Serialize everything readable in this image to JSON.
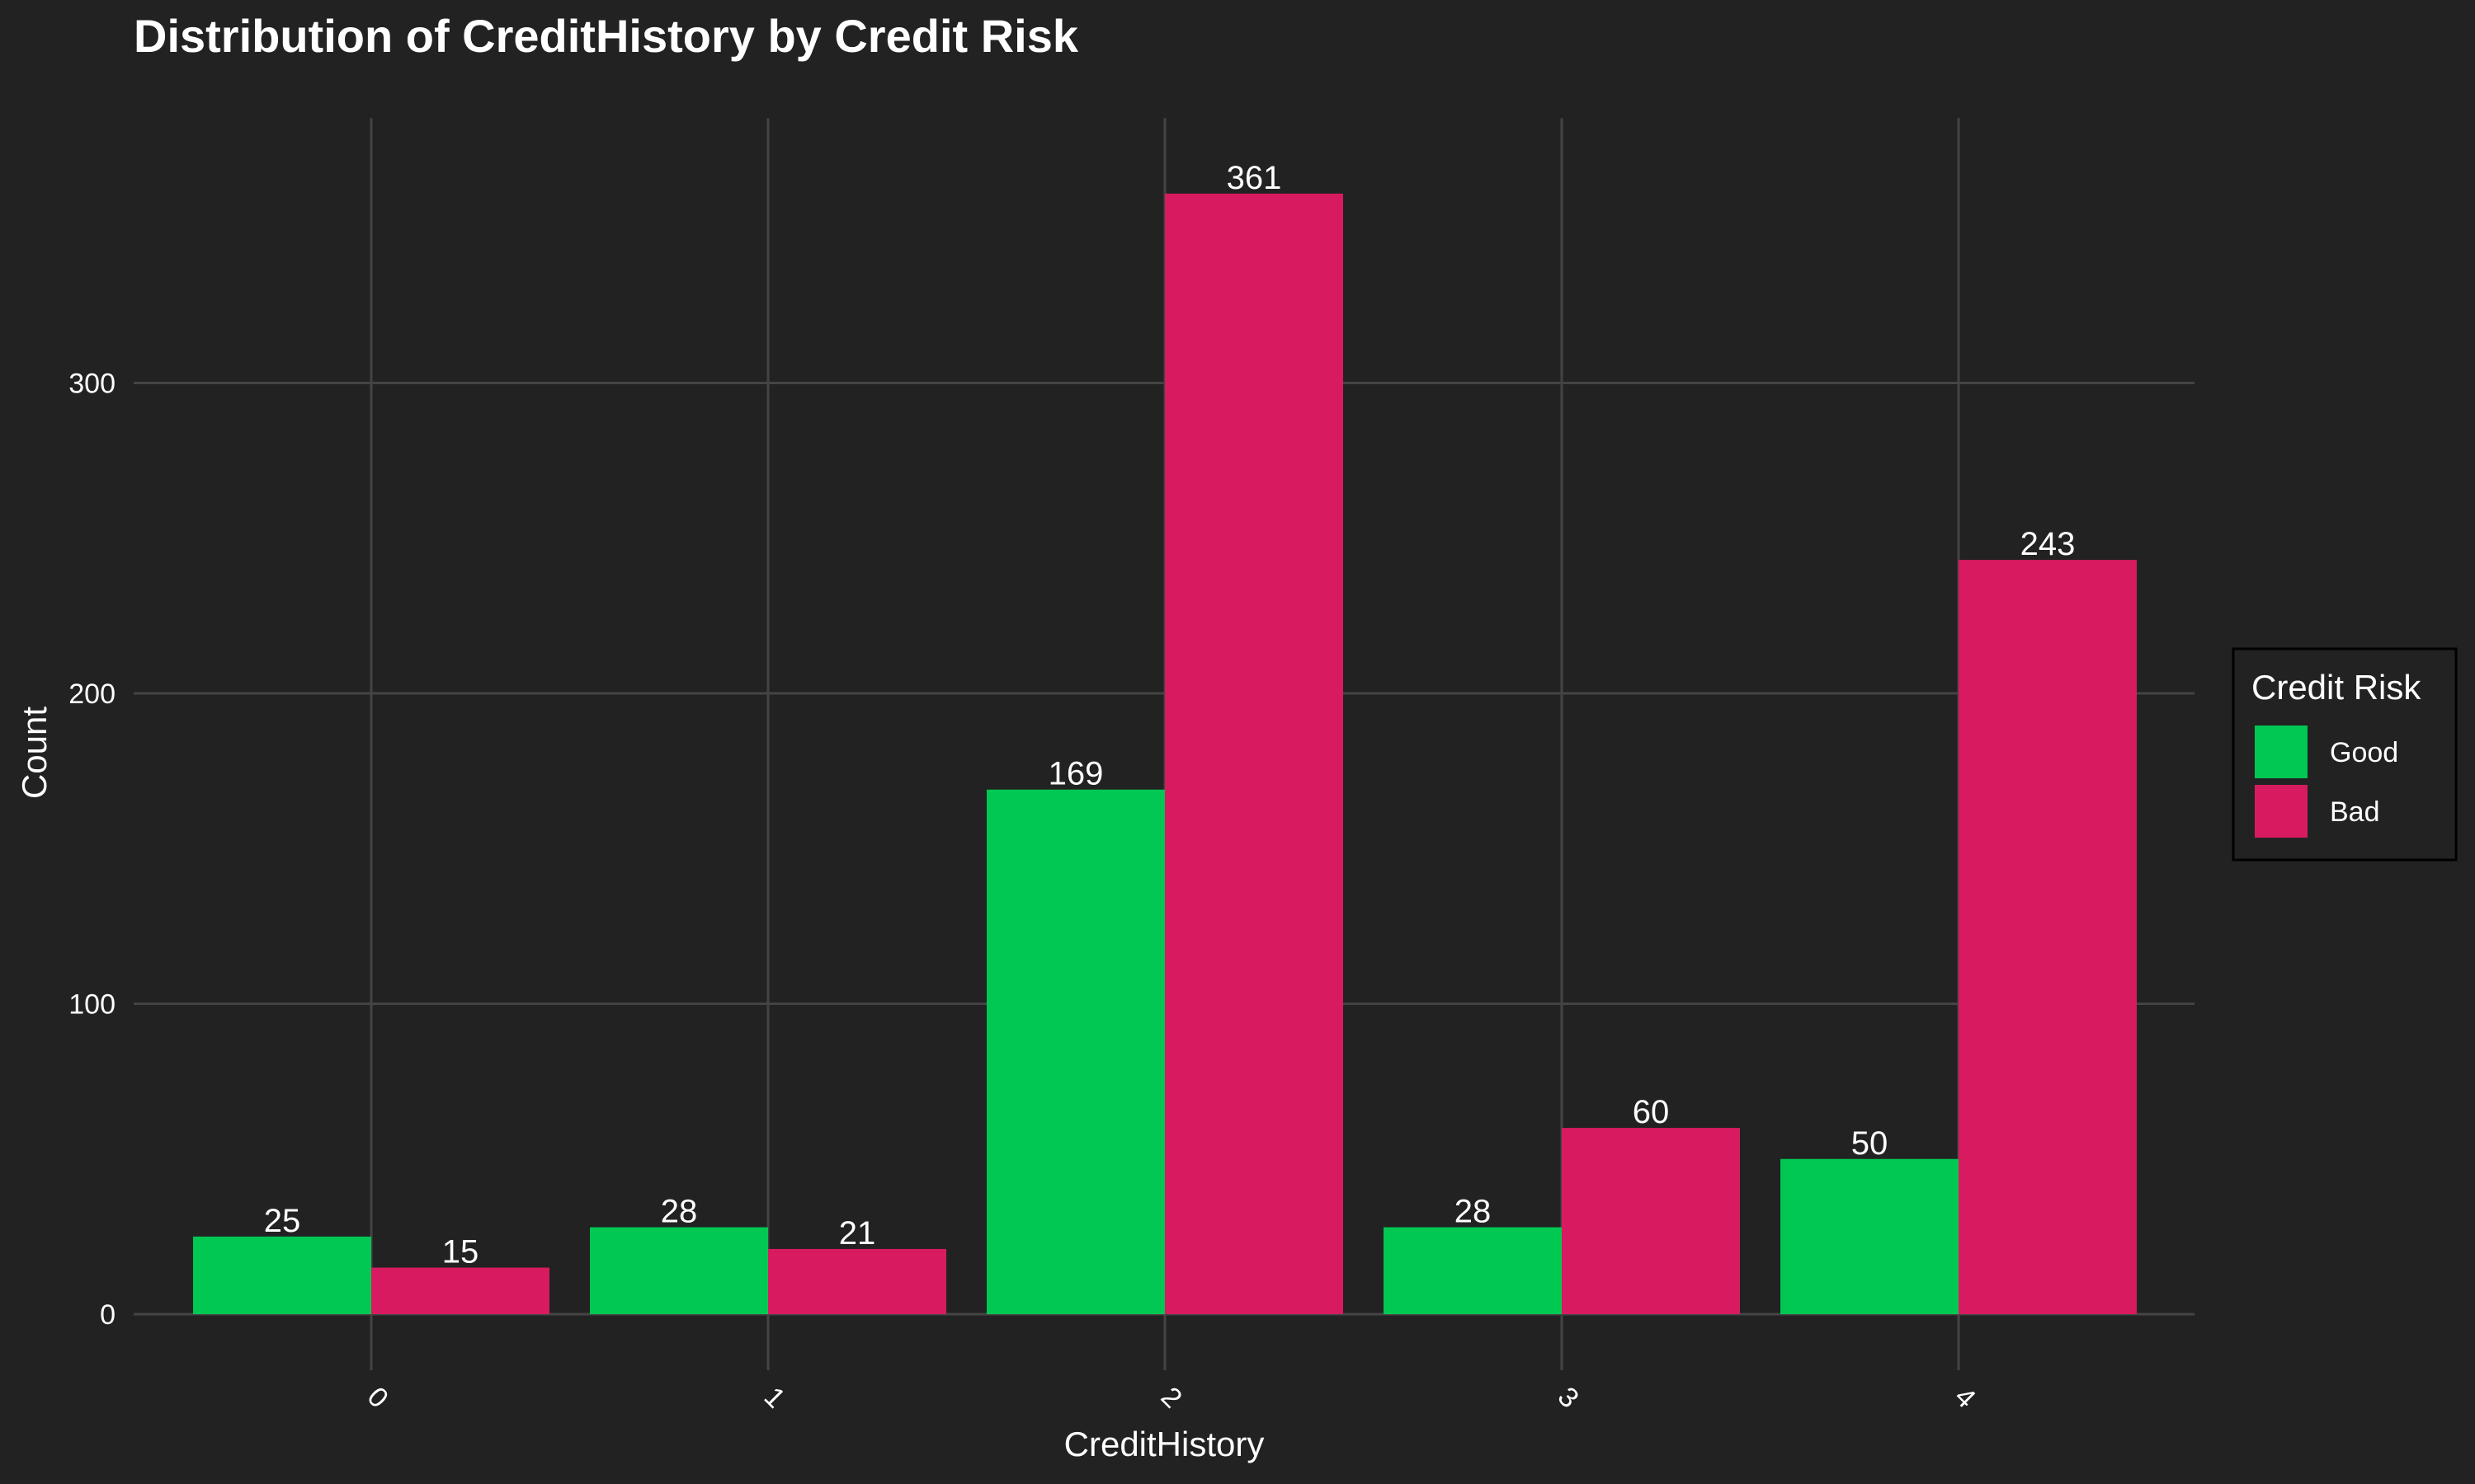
{
  "chart_data": {
    "type": "bar",
    "title": "Distribution of CreditHistory by Credit Risk",
    "xlabel": "CreditHistory",
    "ylabel": "Count",
    "categories": [
      "0",
      "1",
      "2",
      "3",
      "4"
    ],
    "series": [
      {
        "name": "Good",
        "color": "#00c853",
        "values": [
          25,
          28,
          169,
          28,
          50
        ]
      },
      {
        "name": "Bad",
        "color": "#d81b60",
        "values": [
          15,
          21,
          361,
          60,
          243
        ]
      }
    ],
    "ylim": [
      0,
      380
    ],
    "yticks": [
      0,
      100,
      200,
      300
    ],
    "grid": true,
    "legend": {
      "title": "Credit Risk",
      "position": "right"
    },
    "background": "#222222",
    "grid_color": "#444444"
  }
}
